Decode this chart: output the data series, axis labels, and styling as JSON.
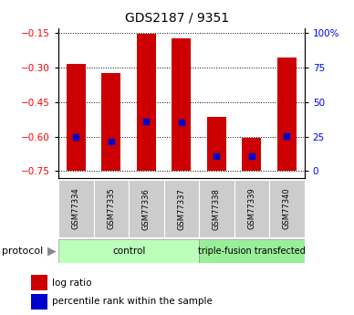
{
  "title": "GDS2187 / 9351",
  "samples": [
    "GSM77334",
    "GSM77335",
    "GSM77336",
    "GSM77337",
    "GSM77338",
    "GSM77339",
    "GSM77340"
  ],
  "bar_tops": [
    -0.285,
    -0.325,
    -0.155,
    -0.175,
    -0.515,
    -0.605,
    -0.255
  ],
  "bar_bottom": -0.75,
  "blue_positions": [
    -0.6,
    -0.622,
    -0.533,
    -0.54,
    -0.685,
    -0.685,
    -0.597
  ],
  "ylim": [
    -0.78,
    -0.13
  ],
  "yticks_left": [
    -0.75,
    -0.6,
    -0.45,
    -0.3,
    -0.15
  ],
  "ytick_right_labels": [
    "0",
    "25",
    "50",
    "75",
    "100%"
  ],
  "bar_color": "#cc0000",
  "blue_color": "#0000cc",
  "bar_width": 0.55,
  "control_color": "#bbffbb",
  "triple_color": "#99ee99",
  "label_bg_color": "#cccccc",
  "title_fontsize": 10,
  "tick_fontsize": 7.5,
  "legend_fontsize": 7.5,
  "sample_fontsize": 6,
  "group_fontsize": 7.5
}
